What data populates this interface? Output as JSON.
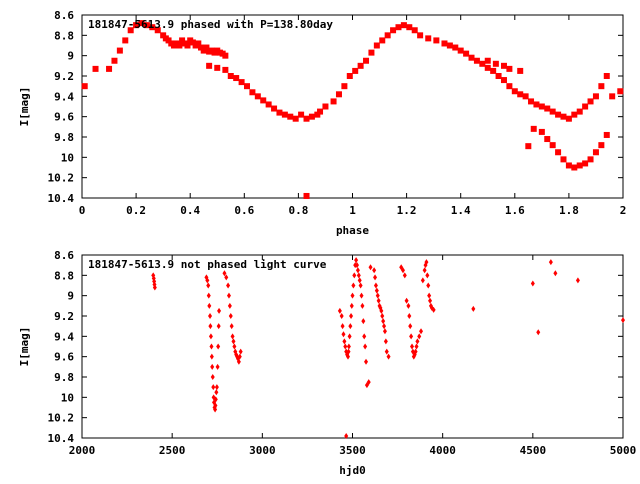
{
  "chart_data": [
    {
      "type": "scatter",
      "title": "181847-5613.9 phased with P=138.80day",
      "xlabel": "phase",
      "ylabel": "I[mag]",
      "xlim": [
        0,
        2
      ],
      "ylim": [
        10.4,
        8.6
      ],
      "y_inverted": true,
      "x_ticks": [
        0,
        0.2,
        0.4,
        0.6,
        0.8,
        1,
        1.2,
        1.4,
        1.6,
        1.8,
        2
      ],
      "y_ticks": [
        8.6,
        8.8,
        9,
        9.2,
        9.4,
        9.6,
        9.8,
        10,
        10.2,
        10.4
      ],
      "marker_color": "#ff0000",
      "grid": false,
      "series": [
        {
          "x": [
            0.01,
            0.05,
            0.1,
            0.12,
            0.14,
            0.16,
            0.18,
            0.2,
            0.22,
            0.24,
            0.26,
            0.28,
            0.3,
            0.31,
            0.32,
            0.33,
            0.34,
            0.35,
            0.36,
            0.37,
            0.38,
            0.39,
            0.4,
            0.41,
            0.42,
            0.43,
            0.44,
            0.45,
            0.46,
            0.47,
            0.48,
            0.49,
            0.5,
            0.51,
            0.52,
            0.53,
            0.47,
            0.5,
            0.53,
            0.55,
            0.57,
            0.59,
            0.61,
            0.63,
            0.65,
            0.67,
            0.69,
            0.71,
            0.73,
            0.75,
            0.77,
            0.79,
            0.81,
            0.83,
            0.85,
            0.87,
            0.88,
            0.9,
            0.93,
            0.95,
            0.97,
            0.99,
            1.01,
            1.03,
            1.05,
            1.07,
            1.09,
            1.11,
            1.13,
            1.15,
            1.17,
            1.19,
            1.21,
            1.23,
            1.25,
            1.28,
            1.31,
            1.34,
            1.36,
            1.38,
            1.4,
            1.42,
            1.44,
            1.46,
            1.48,
            1.5,
            1.52,
            1.54,
            1.56,
            1.58,
            1.6,
            1.62,
            1.64,
            1.66,
            1.68,
            1.7,
            1.72,
            1.74,
            1.76,
            1.78,
            1.8,
            1.82,
            1.84,
            1.86,
            1.88,
            1.9,
            1.92,
            1.94,
            1.96,
            1.99,
            1.65,
            1.67,
            1.7,
            1.72,
            1.74,
            1.76,
            1.78,
            1.8,
            1.82,
            1.84,
            1.86,
            1.88,
            1.9,
            1.92,
            1.94,
            1.5,
            1.53,
            1.56,
            1.58,
            1.62,
            0.83
          ],
          "y": [
            9.3,
            9.13,
            9.13,
            9.05,
            8.95,
            8.85,
            8.75,
            8.7,
            8.68,
            8.7,
            8.72,
            8.75,
            8.8,
            8.83,
            8.85,
            8.88,
            8.9,
            8.88,
            8.9,
            8.85,
            8.88,
            8.9,
            8.85,
            8.87,
            8.9,
            8.88,
            8.92,
            8.95,
            8.92,
            8.96,
            8.95,
            8.97,
            8.95,
            8.97,
            8.98,
            9.0,
            9.1,
            9.12,
            9.14,
            9.2,
            9.22,
            9.26,
            9.3,
            9.36,
            9.4,
            9.44,
            9.48,
            9.52,
            9.56,
            9.58,
            9.6,
            9.62,
            9.58,
            9.62,
            9.6,
            9.58,
            9.55,
            9.5,
            9.45,
            9.38,
            9.3,
            9.2,
            9.15,
            9.1,
            9.05,
            8.97,
            8.9,
            8.85,
            8.8,
            8.75,
            8.72,
            8.7,
            8.72,
            8.75,
            8.8,
            8.83,
            8.85,
            8.88,
            8.9,
            8.92,
            8.95,
            8.98,
            9.02,
            9.05,
            9.08,
            9.12,
            9.15,
            9.2,
            9.24,
            9.3,
            9.35,
            9.38,
            9.4,
            9.45,
            9.48,
            9.5,
            9.52,
            9.55,
            9.58,
            9.6,
            9.62,
            9.58,
            9.55,
            9.5,
            9.45,
            9.4,
            9.3,
            9.2,
            9.4,
            9.35,
            9.89,
            9.72,
            9.75,
            9.82,
            9.88,
            9.95,
            10.02,
            10.08,
            10.1,
            10.08,
            10.06,
            10.02,
            9.95,
            9.88,
            9.78,
            9.05,
            9.08,
            9.1,
            9.13,
            9.15,
            10.38
          ]
        }
      ]
    },
    {
      "type": "scatter",
      "title": "181847-5613.9 not phased light curve",
      "xlabel": "hjd0",
      "ylabel": "I[mag]",
      "xlim": [
        2000,
        5000
      ],
      "ylim": [
        10.4,
        8.6
      ],
      "y_inverted": true,
      "x_ticks": [
        2000,
        2500,
        3000,
        3500,
        4000,
        4500,
        5000
      ],
      "y_ticks": [
        8.6,
        8.8,
        9,
        9.2,
        9.4,
        9.6,
        9.8,
        10,
        10.2,
        10.4
      ],
      "marker_color": "#ff0000",
      "grid": false,
      "series": [
        {
          "x": [
            2395,
            2398,
            2400,
            2402,
            2404,
            2690,
            2695,
            2700,
            2703,
            2706,
            2710,
            2712,
            2715,
            2718,
            2720,
            2722,
            2725,
            2728,
            2730,
            2732,
            2735,
            2738,
            2740,
            2742,
            2745,
            2748,
            2752,
            2755,
            2758,
            2760,
            2790,
            2800,
            2810,
            2815,
            2820,
            2825,
            2830,
            2835,
            2840,
            2845,
            2850,
            2855,
            2860,
            2865,
            2870,
            2875,
            2880,
            3430,
            3440,
            3445,
            3450,
            3455,
            3460,
            3465,
            3470,
            3475,
            3478,
            3480,
            3484,
            3488,
            3492,
            3496,
            3500,
            3505,
            3510,
            3515,
            3520,
            3525,
            3530,
            3535,
            3540,
            3545,
            3550,
            3555,
            3560,
            3565,
            3570,
            3575,
            3580,
            3590,
            3600,
            3620,
            3625,
            3630,
            3635,
            3640,
            3645,
            3650,
            3655,
            3660,
            3665,
            3670,
            3675,
            3680,
            3685,
            3690,
            3700,
            3770,
            3780,
            3790,
            3800,
            3810,
            3815,
            3820,
            3825,
            3830,
            3835,
            3840,
            3845,
            3850,
            3855,
            3860,
            3870,
            3880,
            3890,
            3900,
            3905,
            3910,
            3915,
            3920,
            3925,
            3930,
            3935,
            3940,
            3950,
            4170,
            4500,
            4530,
            4600,
            4625,
            4750,
            5000,
            3465
          ],
          "y": [
            8.8,
            8.83,
            8.86,
            8.89,
            8.92,
            8.82,
            8.85,
            8.9,
            9.0,
            9.1,
            9.2,
            9.3,
            9.4,
            9.5,
            9.6,
            9.7,
            9.8,
            9.9,
            10.0,
            10.05,
            10.1,
            10.12,
            10.08,
            10.02,
            9.95,
            9.9,
            9.7,
            9.5,
            9.3,
            9.15,
            8.78,
            8.82,
            8.9,
            9.0,
            9.1,
            9.2,
            9.3,
            9.4,
            9.45,
            9.5,
            9.55,
            9.58,
            9.6,
            9.62,
            9.65,
            9.6,
            9.55,
            9.15,
            9.2,
            9.3,
            9.38,
            9.45,
            9.5,
            9.55,
            9.58,
            9.6,
            9.55,
            9.5,
            9.4,
            9.3,
            9.2,
            9.1,
            9.0,
            8.9,
            8.8,
            8.7,
            8.65,
            8.7,
            8.75,
            8.8,
            8.85,
            8.9,
            9.0,
            9.1,
            9.25,
            9.4,
            9.5,
            9.65,
            9.88,
            9.85,
            8.72,
            8.75,
            8.82,
            8.9,
            8.95,
            9.0,
            9.05,
            9.1,
            9.12,
            9.15,
            9.2,
            9.25,
            9.3,
            9.35,
            9.45,
            9.55,
            9.6,
            8.72,
            8.75,
            8.8,
            9.05,
            9.1,
            9.2,
            9.3,
            9.4,
            9.5,
            9.55,
            9.6,
            9.58,
            9.55,
            9.5,
            9.45,
            9.4,
            9.35,
            8.85,
            8.75,
            8.7,
            8.67,
            8.8,
            8.9,
            9.0,
            9.05,
            9.1,
            9.12,
            9.14,
            9.13,
            8.88,
            9.36,
            8.67,
            8.78,
            8.85,
            9.24,
            10.38
          ]
        }
      ]
    }
  ]
}
